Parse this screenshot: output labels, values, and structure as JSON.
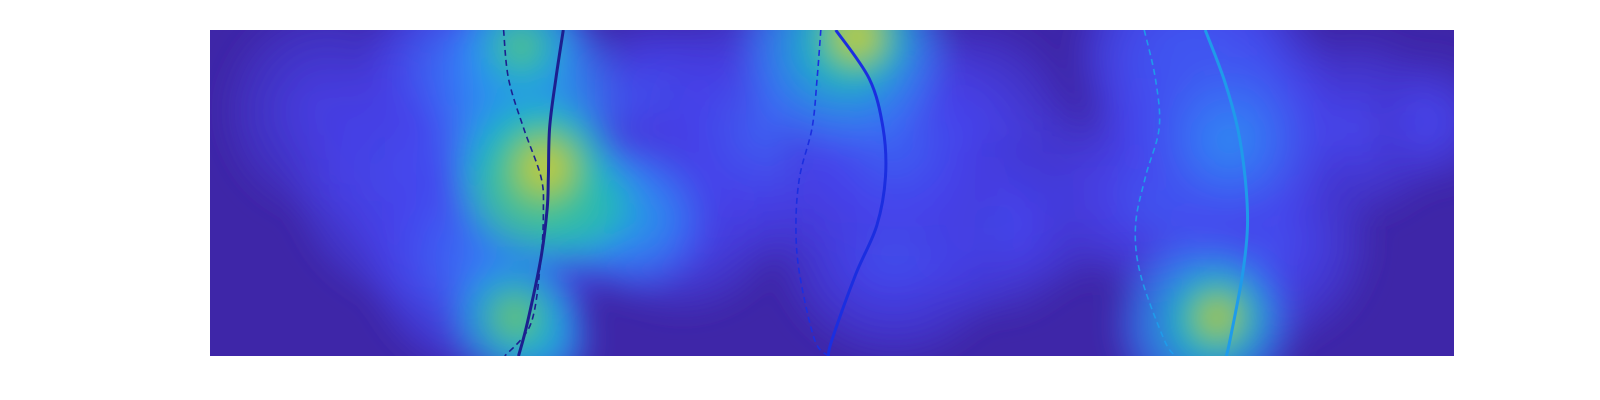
{
  "chart_data": {
    "type": "heatmap",
    "title": "",
    "xlabel": "",
    "ylabel": "",
    "xlim": [
      0,
      1
    ],
    "ylim": [
      0,
      1
    ],
    "grid": false,
    "axes_visible": false,
    "colormap": [
      "#3e26a8",
      "#4745f1",
      "#2f8ff6",
      "#13beb8",
      "#7cd04e",
      "#f5b82a",
      "#f9fb0e"
    ],
    "background_color": "#3e26a8",
    "heat_blobs": [
      {
        "x": 0.095,
        "y": 0.75,
        "r": 0.08,
        "value": 0.15
      },
      {
        "x": 0.17,
        "y": 0.55,
        "r": 0.1,
        "value": 0.25
      },
      {
        "x": 0.2,
        "y": 0.9,
        "r": 0.07,
        "value": 0.3
      },
      {
        "x": 0.22,
        "y": 0.3,
        "r": 0.09,
        "value": 0.3
      },
      {
        "x": 0.215,
        "y": 0.55,
        "r": 0.1,
        "value": 0.25
      },
      {
        "x": 0.255,
        "y": 0.78,
        "r": 0.08,
        "value": 0.5
      },
      {
        "x": 0.255,
        "y": 0.6,
        "r": 0.06,
        "value": 0.7
      },
      {
        "x": 0.26,
        "y": 0.52,
        "r": 0.06,
        "value": 0.88
      },
      {
        "x": 0.27,
        "y": 0.58,
        "r": 0.05,
        "value": 0.92
      },
      {
        "x": 0.29,
        "y": 0.47,
        "r": 0.05,
        "value": 0.8
      },
      {
        "x": 0.25,
        "y": 0.95,
        "r": 0.05,
        "value": 0.65
      },
      {
        "x": 0.245,
        "y": 0.12,
        "r": 0.05,
        "value": 0.7
      },
      {
        "x": 0.265,
        "y": 0.05,
        "r": 0.04,
        "value": 0.55
      },
      {
        "x": 0.31,
        "y": 0.46,
        "r": 0.05,
        "value": 0.6
      },
      {
        "x": 0.34,
        "y": 0.42,
        "r": 0.06,
        "value": 0.45
      },
      {
        "x": 0.36,
        "y": 0.8,
        "r": 0.06,
        "value": 0.22
      },
      {
        "x": 0.38,
        "y": 0.45,
        "r": 0.08,
        "value": 0.2
      },
      {
        "x": 0.45,
        "y": 0.7,
        "r": 0.1,
        "value": 0.25
      },
      {
        "x": 0.51,
        "y": 0.95,
        "r": 0.08,
        "value": 0.6
      },
      {
        "x": 0.52,
        "y": 0.98,
        "r": 0.04,
        "value": 0.95
      },
      {
        "x": 0.55,
        "y": 0.65,
        "r": 0.09,
        "value": 0.25
      },
      {
        "x": 0.55,
        "y": 0.35,
        "r": 0.09,
        "value": 0.22
      },
      {
        "x": 0.61,
        "y": 0.7,
        "r": 0.08,
        "value": 0.18
      },
      {
        "x": 0.63,
        "y": 0.4,
        "r": 0.07,
        "value": 0.2
      },
      {
        "x": 0.68,
        "y": 0.5,
        "r": 0.07,
        "value": 0.15
      },
      {
        "x": 0.77,
        "y": 0.5,
        "r": 0.08,
        "value": 0.25
      },
      {
        "x": 0.78,
        "y": 0.92,
        "r": 0.08,
        "value": 0.3
      },
      {
        "x": 0.81,
        "y": 0.8,
        "r": 0.09,
        "value": 0.3
      },
      {
        "x": 0.82,
        "y": 0.66,
        "r": 0.08,
        "value": 0.35
      },
      {
        "x": 0.8,
        "y": 0.1,
        "r": 0.07,
        "value": 0.55
      },
      {
        "x": 0.81,
        "y": 0.12,
        "r": 0.04,
        "value": 0.85
      },
      {
        "x": 0.85,
        "y": 0.35,
        "r": 0.08,
        "value": 0.2
      },
      {
        "x": 0.92,
        "y": 0.7,
        "r": 0.07,
        "value": 0.18
      },
      {
        "x": 0.98,
        "y": 0.72,
        "r": 0.05,
        "value": 0.18
      }
    ],
    "series": [
      {
        "style": "solid",
        "color": "#1c1f8f",
        "x": [
          0.284,
          0.278,
          0.273,
          0.272,
          0.271,
          0.266,
          0.255,
          0.248
        ],
        "y": [
          1.0,
          0.85,
          0.7,
          0.55,
          0.45,
          0.3,
          0.1,
          0.0
        ]
      },
      {
        "style": "dashed",
        "color": "#1c1f8f",
        "x": [
          0.236,
          0.24,
          0.252,
          0.266,
          0.268,
          0.266,
          0.258,
          0.237
        ],
        "y": [
          1.0,
          0.85,
          0.7,
          0.55,
          0.45,
          0.3,
          0.1,
          0.0
        ]
      },
      {
        "style": "solid",
        "color": "#1b2ee0",
        "x": [
          0.503,
          0.53,
          0.541,
          0.543,
          0.536,
          0.519,
          0.5,
          0.497
        ],
        "y": [
          1.0,
          0.85,
          0.7,
          0.55,
          0.4,
          0.25,
          0.05,
          0.0
        ]
      },
      {
        "style": "dashed",
        "color": "#1b2ee0",
        "x": [
          0.491,
          0.488,
          0.484,
          0.474,
          0.471,
          0.474,
          0.486,
          0.497
        ],
        "y": [
          1.0,
          0.85,
          0.7,
          0.55,
          0.4,
          0.25,
          0.05,
          0.0
        ]
      },
      {
        "style": "solid",
        "color": "#1f9bea",
        "x": [
          0.8,
          0.815,
          0.826,
          0.832,
          0.834,
          0.83,
          0.82,
          0.817
        ],
        "y": [
          1.0,
          0.85,
          0.7,
          0.55,
          0.4,
          0.25,
          0.05,
          0.0
        ]
      },
      {
        "style": "dashed",
        "color": "#1f9bea",
        "x": [
          0.751,
          0.76,
          0.763,
          0.752,
          0.744,
          0.748,
          0.767,
          0.776
        ],
        "y": [
          1.0,
          0.85,
          0.7,
          0.55,
          0.4,
          0.25,
          0.05,
          0.0
        ]
      }
    ]
  }
}
